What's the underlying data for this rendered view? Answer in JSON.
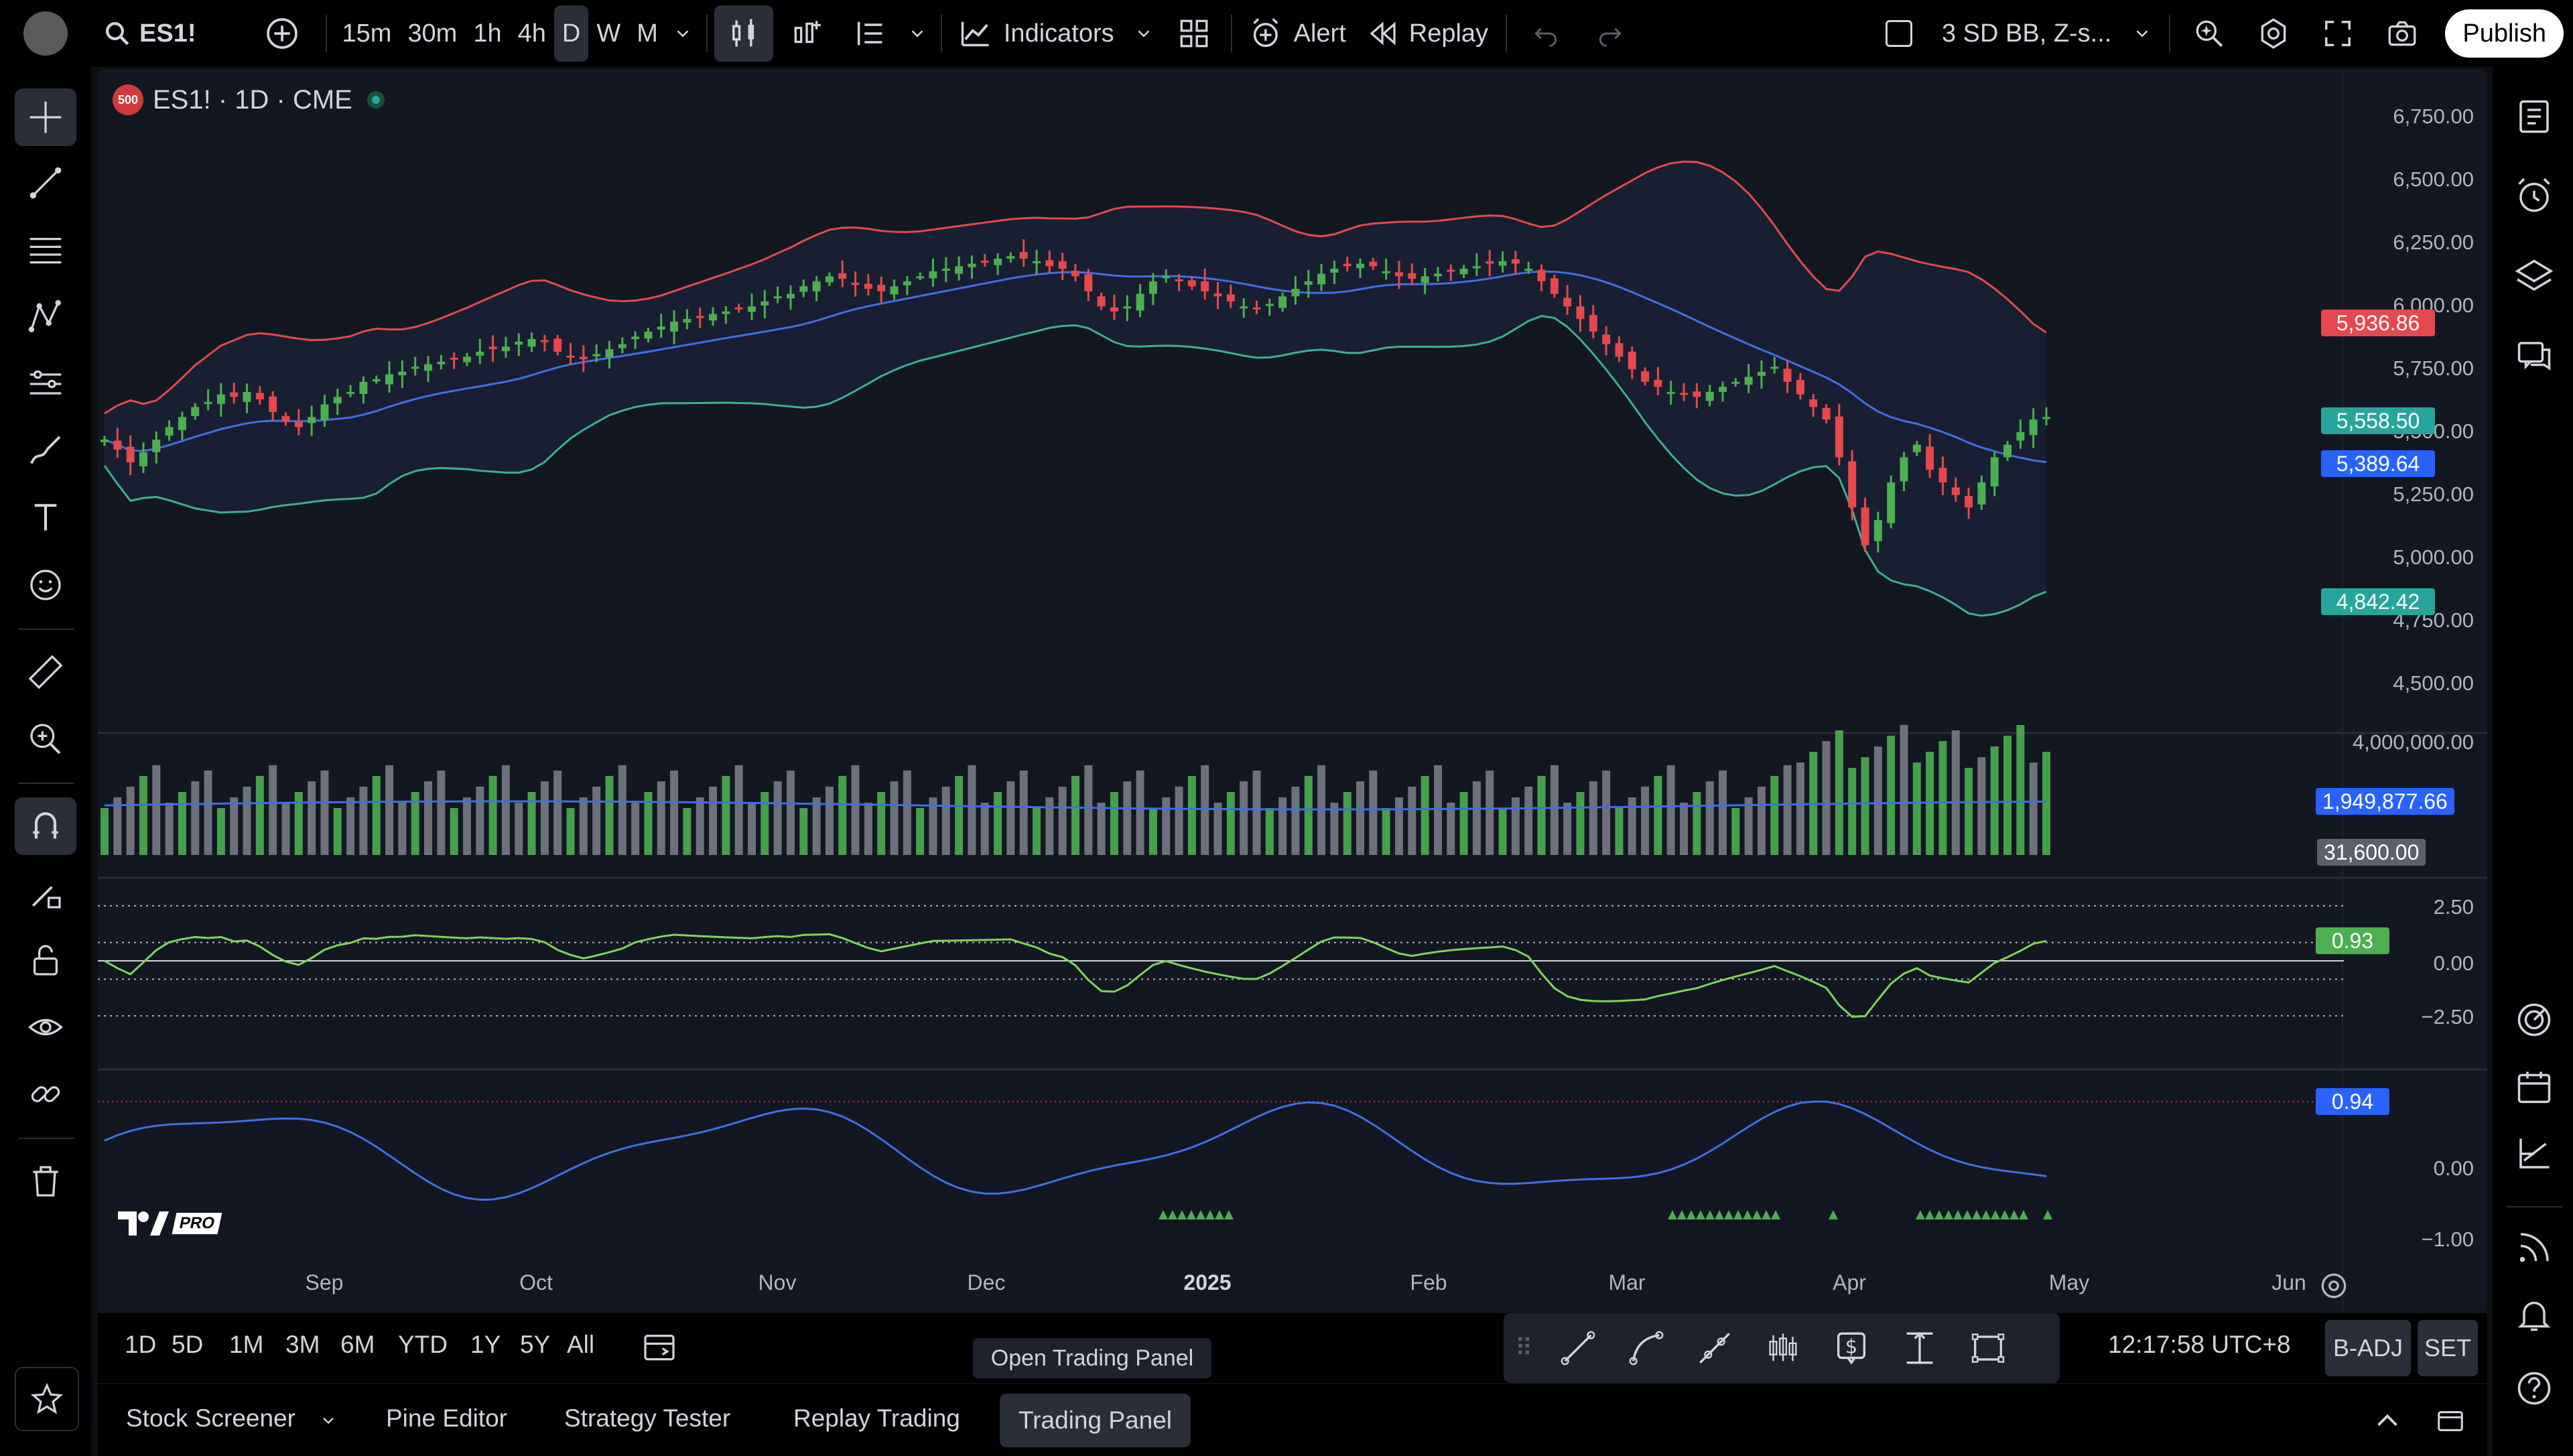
{
  "topbar": {
    "symbol": "ES1!",
    "timeframes": [
      "15m",
      "30m",
      "1h",
      "4h",
      "D",
      "W",
      "M"
    ],
    "active_timeframe": "D",
    "indicators_label": "Indicators",
    "alert_label": "Alert",
    "replay_label": "Replay",
    "layout_name": "3 SD BB, Z-s...",
    "publish_label": "Publish"
  },
  "legend": {
    "badge": "500",
    "title": "ES1! · 1D · CME"
  },
  "price_axis": [
    "6,750.00",
    "6,500.00",
    "6,250.00",
    "6,000.00",
    "5,750.00",
    "5,500.00",
    "5,250.00",
    "5,000.00",
    "4,750.00",
    "4,500.00"
  ],
  "price_tags": {
    "upper_band": "5,936.86",
    "last_price": "5,558.50",
    "middle_band": "5,389.64",
    "lower_band": "4,842.42"
  },
  "volume_axis": [
    "4,000,000.00"
  ],
  "volume_tags": {
    "ma": "1,949,877.66",
    "last": "31,600.00"
  },
  "z_axis": [
    "2.50",
    "0.00",
    "−2.50"
  ],
  "z_tag": "0.93",
  "osc_axis": [
    "0.00",
    "−1.00"
  ],
  "osc_tag": "0.94",
  "date_axis": [
    "Sep",
    "Oct",
    "Nov",
    "Dec",
    "2025",
    "Feb",
    "Mar",
    "Apr",
    "May",
    "Jun"
  ],
  "rangebar": {
    "ranges": [
      "1D",
      "5D",
      "1M",
      "3M",
      "6M",
      "YTD",
      "1Y",
      "5Y",
      "All"
    ],
    "clock": "12:17:58 UTC+8",
    "badj": "B-ADJ",
    "set": "SET"
  },
  "tooltip": "Open Trading Panel",
  "bottom_tabs": [
    "Stock Screener",
    "Pine Editor",
    "Strategy Tester",
    "Replay Trading",
    "Trading Panel"
  ],
  "logo_text": "PRO",
  "colors": {
    "up": "#4caf50",
    "down": "#e5484d",
    "upper": "#e5484d",
    "middle": "#3f6fe6",
    "lower": "#3bb08f",
    "zline": "#7ed45a",
    "osc": "#3f6fe6"
  },
  "chart_data": {
    "type": "candlestick",
    "series_close": [
      5470,
      5430,
      5380,
      5420,
      5470,
      5520,
      5560,
      5600,
      5620,
      5650,
      5640,
      5660,
      5630,
      5580,
      5540,
      5520,
      5560,
      5610,
      5640,
      5660,
      5700,
      5710,
      5730,
      5740,
      5760,
      5770,
      5780,
      5790,
      5800,
      5820,
      5830,
      5840,
      5860,
      5870,
      5860,
      5820,
      5800,
      5790,
      5810,
      5830,
      5850,
      5880,
      5900,
      5920,
      5940,
      5950,
      5960,
      5970,
      5980,
      5990,
      6000,
      6020,
      6040,
      6050,
      6080,
      6100,
      6120,
      6110,
      6090,
      6070,
      6060,
      6080,
      6100,
      6120,
      6140,
      6150,
      6160,
      6170,
      6180,
      6190,
      6200,
      6190,
      6180,
      6160,
      6150,
      6120,
      6060,
      6000,
      5980,
      6000,
      6050,
      6100,
      6120,
      6100,
      6080,
      6060,
      6040,
      6020,
      6000,
      5990,
      6010,
      6040,
      6070,
      6100,
      6130,
      6150,
      6160,
      6170,
      6160,
      6140,
      6120,
      6110,
      6120,
      6130,
      6140,
      6150,
      6160,
      6170,
      6180,
      6170,
      6150,
      6100,
      6050,
      6000,
      5950,
      5900,
      5850,
      5800,
      5750,
      5700,
      5680,
      5660,
      5650,
      5640,
      5660,
      5680,
      5700,
      5720,
      5740,
      5760,
      5700,
      5650,
      5600,
      5550,
      5400,
      5200,
      5050,
      5150,
      5300,
      5400,
      5450,
      5350,
      5300,
      5250,
      5200,
      5300,
      5400,
      5450,
      5500,
      5550,
      5560
    ]
  }
}
